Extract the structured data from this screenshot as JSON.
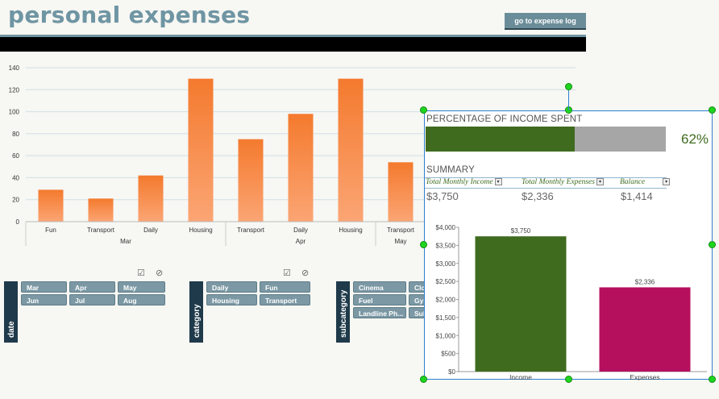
{
  "header": {
    "title": "personal expenses",
    "log_button": "go to expense log"
  },
  "chart_data": [
    {
      "type": "bar",
      "categories": [
        "Fun",
        "Transport",
        "Daily",
        "Housing",
        "Transport",
        "Daily",
        "Housing",
        "Transport"
      ],
      "groups": [
        {
          "label": "Mar",
          "categories": [
            "Fun",
            "Transport",
            "Daily",
            "Housing"
          ]
        },
        {
          "label": "Apr",
          "categories": [
            "Transport",
            "Daily",
            "Housing"
          ]
        },
        {
          "label": "May",
          "categories": [
            "Transport"
          ]
        }
      ],
      "values": [
        29,
        21,
        42,
        130,
        75,
        98,
        130,
        54
      ],
      "ylim": [
        0,
        140
      ],
      "yticks": [
        "0",
        "20",
        "40",
        "60",
        "80",
        "100",
        "120",
        "140"
      ],
      "grid": true,
      "bar_color": "#f47a2e"
    },
    {
      "type": "bar",
      "categories": [
        "Income",
        "Expenses"
      ],
      "values": [
        3750,
        2336
      ],
      "data_labels": [
        "$3,750",
        "$2,336"
      ],
      "colors": [
        "#3f6b1e",
        "#b5105e"
      ],
      "ylim": [
        0,
        4000
      ],
      "yticks": [
        "$0",
        "$500",
        "$1,000",
        "$1,500",
        "$2,000",
        "$2,500",
        "$3,000",
        "$3,500",
        "$4,000"
      ]
    }
  ],
  "slicers": {
    "date": {
      "label": "date",
      "items": [
        "Mar",
        "Apr",
        "May",
        "Jun",
        "Jul",
        "Aug"
      ]
    },
    "category": {
      "label": "category",
      "items": [
        "Daily",
        "Fun",
        "Housing",
        "Transport"
      ]
    },
    "subcategory": {
      "label": "subcategory",
      "items": [
        "Cinema",
        "Clo",
        "Fuel",
        "Gy",
        "Landline Ph...",
        "Sul"
      ]
    },
    "icons": [
      "multi-select-icon",
      "clear-filter-icon"
    ]
  },
  "dashboard": {
    "percentage_title": "PERCENTAGE OF INCOME SPENT",
    "percentage_value": "62%",
    "percentage_fraction": 0.62,
    "summary_title": "SUMMARY",
    "columns": [
      "Total Monthly Income",
      "Total Monthly Expenses",
      "Balance"
    ],
    "values": [
      "$3,750",
      "$2,336",
      "$1,414"
    ]
  }
}
